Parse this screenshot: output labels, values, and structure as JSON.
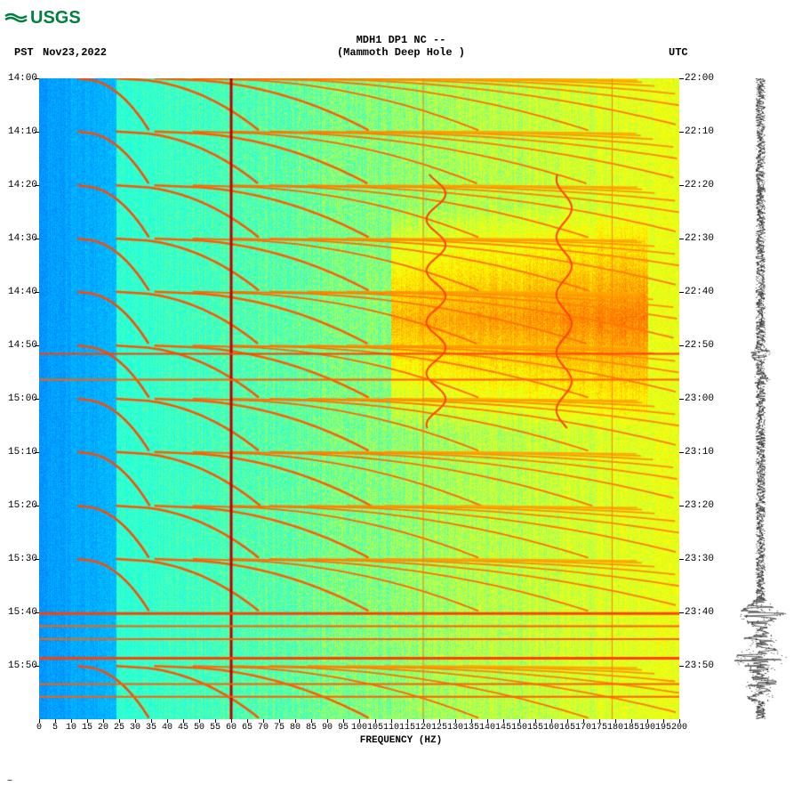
{
  "logo": {
    "text": "USGS",
    "color": "#007f3f",
    "wave_color": "#007f3f"
  },
  "header": {
    "title_line1": "MDH1 DP1 NC --",
    "title_line2": "(Mammoth Deep Hole )",
    "tz_left": "PST",
    "date": "Nov23,2022",
    "tz_right": "UTC"
  },
  "spectrogram": {
    "type": "heatmap",
    "x_label": "FREQUENCY (HZ)",
    "x_min": 0,
    "x_max": 200,
    "x_tick_step": 5,
    "x_ticks": [
      0,
      5,
      10,
      15,
      20,
      25,
      30,
      35,
      40,
      45,
      50,
      55,
      60,
      65,
      70,
      75,
      80,
      85,
      90,
      95,
      100,
      105,
      110,
      115,
      120,
      125,
      130,
      135,
      140,
      145,
      150,
      155,
      160,
      165,
      170,
      175,
      180,
      185,
      190,
      195,
      200
    ],
    "y_ticks_left": [
      "14:00",
      "14:10",
      "14:20",
      "14:30",
      "14:40",
      "14:50",
      "15:00",
      "15:10",
      "15:20",
      "15:30",
      "15:40",
      "15:50"
    ],
    "y_ticks_right": [
      "22:00",
      "22:10",
      "22:20",
      "22:30",
      "22:40",
      "22:50",
      "23:00",
      "23:10",
      "23:20",
      "23:30",
      "23:40",
      "23:50"
    ],
    "y_tick_positions": [
      0,
      0.083,
      0.167,
      0.25,
      0.333,
      0.417,
      0.5,
      0.583,
      0.667,
      0.75,
      0.833,
      0.917
    ],
    "colormap": {
      "stops": [
        {
          "v": 0.0,
          "c": "#0080ff"
        },
        {
          "v": 0.15,
          "c": "#00bfff"
        },
        {
          "v": 0.3,
          "c": "#00ffff"
        },
        {
          "v": 0.45,
          "c": "#40ffbf"
        },
        {
          "v": 0.55,
          "c": "#bfff40"
        },
        {
          "v": 0.65,
          "c": "#ffff00"
        },
        {
          "v": 0.75,
          "c": "#ffbf00"
        },
        {
          "v": 0.85,
          "c": "#ff8000"
        },
        {
          "v": 0.95,
          "c": "#ff4000"
        },
        {
          "v": 1.0,
          "c": "#c00000"
        }
      ]
    },
    "background_low_freq_cutoff": 0.12,
    "vertical_lines": [
      {
        "freq_frac": 0.3,
        "intensity": 1.0,
        "width": 3
      },
      {
        "freq_frac": 0.6,
        "intensity": 0.85,
        "width": 1
      },
      {
        "freq_frac": 0.895,
        "intensity": 0.85,
        "width": 1
      }
    ],
    "harmonic_sweeps": [
      {
        "t_start": 0.0,
        "t_end": 0.083,
        "f0": 0.06,
        "curve": 2.2
      },
      {
        "t_start": 0.083,
        "t_end": 0.167,
        "f0": 0.06,
        "curve": 2.2
      },
      {
        "t_start": 0.167,
        "t_end": 0.25,
        "f0": 0.06,
        "curve": 2.2
      },
      {
        "t_start": 0.25,
        "t_end": 0.333,
        "f0": 0.06,
        "curve": 2.2
      },
      {
        "t_start": 0.333,
        "t_end": 0.417,
        "f0": 0.06,
        "curve": 2.2
      },
      {
        "t_start": 0.417,
        "t_end": 0.5,
        "f0": 0.06,
        "curve": 2.2
      },
      {
        "t_start": 0.5,
        "t_end": 0.583,
        "f0": 0.06,
        "curve": 2.2
      },
      {
        "t_start": 0.583,
        "t_end": 0.667,
        "f0": 0.06,
        "curve": 2.2
      },
      {
        "t_start": 0.667,
        "t_end": 0.75,
        "f0": 0.06,
        "curve": 2.2
      },
      {
        "t_start": 0.75,
        "t_end": 0.833,
        "f0": 0.06,
        "curve": 2.2
      },
      {
        "t_start": 0.917,
        "t_end": 1.0,
        "f0": 0.06,
        "curve": 2.2
      }
    ],
    "n_harmonics": 16,
    "horizontal_bands": [
      {
        "t": 0.43,
        "intensity": 0.95,
        "width": 2
      },
      {
        "t": 0.47,
        "intensity": 0.9,
        "width": 2
      },
      {
        "t": 0.835,
        "intensity": 0.95,
        "width": 3
      },
      {
        "t": 0.855,
        "intensity": 0.9,
        "width": 2
      },
      {
        "t": 0.875,
        "intensity": 0.9,
        "width": 2
      },
      {
        "t": 0.905,
        "intensity": 0.95,
        "width": 3
      },
      {
        "t": 0.945,
        "intensity": 0.9,
        "width": 2
      },
      {
        "t": 0.965,
        "intensity": 0.9,
        "width": 2
      }
    ],
    "hot_region": {
      "t_start": 0.2,
      "t_end": 0.55,
      "f_start": 0.55,
      "f_end": 0.95,
      "boost": 0.25
    },
    "wiggle_columns": [
      {
        "f": 0.62,
        "amp": 0.015,
        "period": 0.08
      },
      {
        "f": 0.82,
        "amp": 0.012,
        "period": 0.09
      }
    ]
  },
  "seismograph": {
    "type": "trace",
    "color": "#000000",
    "baseline_amplitude": 0.15,
    "events": [
      {
        "t": 0.43,
        "amp": 0.4,
        "dur": 0.02
      },
      {
        "t": 0.47,
        "amp": 0.35,
        "dur": 0.015
      },
      {
        "t": 0.835,
        "amp": 0.9,
        "dur": 0.03
      },
      {
        "t": 0.875,
        "amp": 0.6,
        "dur": 0.02
      },
      {
        "t": 0.905,
        "amp": 1.0,
        "dur": 0.035
      },
      {
        "t": 0.945,
        "amp": 0.7,
        "dur": 0.02
      },
      {
        "t": 0.965,
        "amp": 0.5,
        "dur": 0.015
      }
    ]
  },
  "footer_mark": "~"
}
